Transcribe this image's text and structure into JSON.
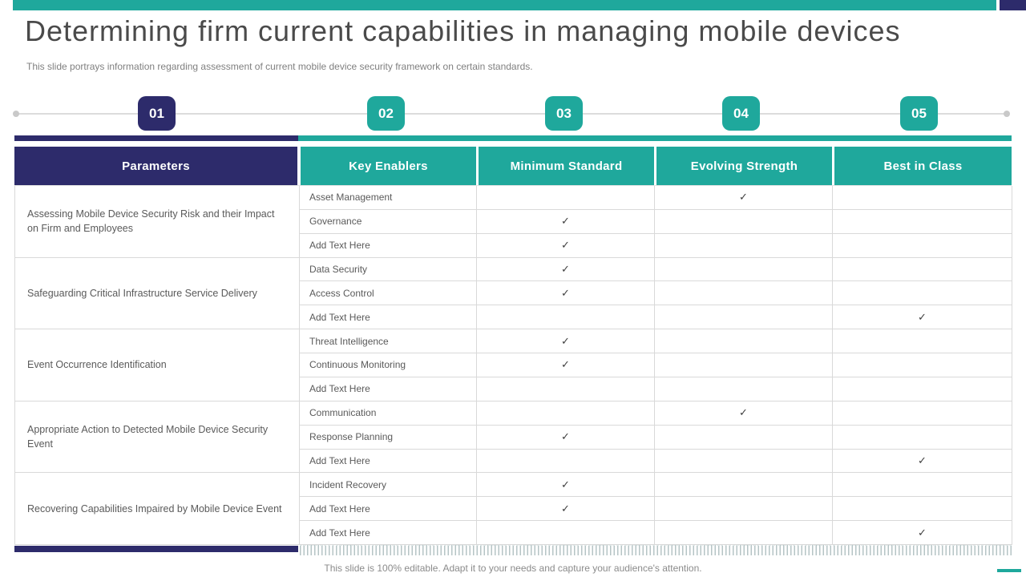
{
  "slide": {
    "title": "Determining firm current capabilities in managing mobile devices",
    "subtitle": "This slide portrays information regarding assessment of current mobile device security framework on certain standards.",
    "footer_note": "This slide is 100% editable. Adapt it to your needs and capture your audience's attention."
  },
  "stepper": {
    "steps": [
      {
        "label": "01",
        "active": true
      },
      {
        "label": "02",
        "active": false
      },
      {
        "label": "03",
        "active": false
      },
      {
        "label": "04",
        "active": false
      },
      {
        "label": "05",
        "active": false
      }
    ]
  },
  "table": {
    "columns": [
      "Parameters",
      "Key Enablers",
      "Minimum Standard",
      "Evolving Strength",
      "Best in Class"
    ],
    "check_glyph": "✓",
    "groups": [
      {
        "parameter": "Assessing Mobile Device Security Risk and their Impact on Firm and Employees",
        "rows": [
          {
            "enabler": "Asset Management",
            "minimum_standard": "",
            "evolving_strength": "✓",
            "best_in_class": ""
          },
          {
            "enabler": "Governance",
            "minimum_standard": "✓",
            "evolving_strength": "",
            "best_in_class": ""
          },
          {
            "enabler": "Add Text Here",
            "minimum_standard": "✓",
            "evolving_strength": "",
            "best_in_class": ""
          }
        ]
      },
      {
        "parameter": "Safeguarding Critical Infrastructure Service Delivery",
        "rows": [
          {
            "enabler": "Data Security",
            "minimum_standard": "✓",
            "evolving_strength": "",
            "best_in_class": ""
          },
          {
            "enabler": "Access Control",
            "minimum_standard": "✓",
            "evolving_strength": "",
            "best_in_class": ""
          },
          {
            "enabler": "Add Text Here",
            "minimum_standard": "",
            "evolving_strength": "",
            "best_in_class": "✓"
          }
        ]
      },
      {
        "parameter": "Event Occurrence Identification",
        "rows": [
          {
            "enabler": "Threat Intelligence",
            "minimum_standard": "✓",
            "evolving_strength": "",
            "best_in_class": ""
          },
          {
            "enabler": "Continuous Monitoring",
            "minimum_standard": "✓",
            "evolving_strength": "",
            "best_in_class": ""
          },
          {
            "enabler": "Add Text Here",
            "minimum_standard": "",
            "evolving_strength": "",
            "best_in_class": ""
          }
        ]
      },
      {
        "parameter": "Appropriate Action to Detected Mobile Device Security Event",
        "rows": [
          {
            "enabler": "Communication",
            "minimum_standard": "",
            "evolving_strength": "✓",
            "best_in_class": ""
          },
          {
            "enabler": "Response Planning",
            "minimum_standard": "✓",
            "evolving_strength": "",
            "best_in_class": ""
          },
          {
            "enabler": "Add Text Here",
            "minimum_standard": "",
            "evolving_strength": "",
            "best_in_class": "✓"
          }
        ]
      },
      {
        "parameter": "Recovering Capabilities Impaired by Mobile Device Event",
        "rows": [
          {
            "enabler": "Incident Recovery",
            "minimum_standard": "✓",
            "evolving_strength": "",
            "best_in_class": ""
          },
          {
            "enabler": "Add Text Here",
            "minimum_standard": "✓",
            "evolving_strength": "",
            "best_in_class": ""
          },
          {
            "enabler": "Add Text Here",
            "minimum_standard": "",
            "evolving_strength": "",
            "best_in_class": "✓"
          }
        ]
      }
    ]
  },
  "colors": {
    "teal": "#1FA89C",
    "navy": "#2D2B6B",
    "title_gray": "#4A4A4A",
    "body_gray": "#5A5A5A",
    "grid_line": "#D9D9D9"
  }
}
